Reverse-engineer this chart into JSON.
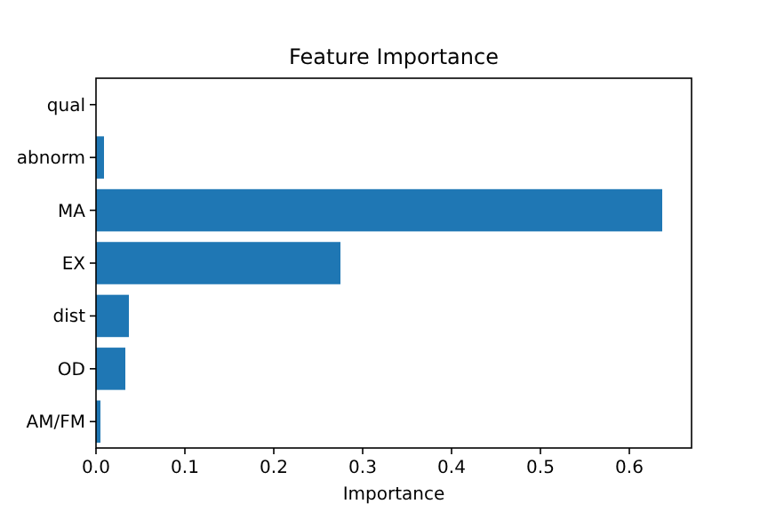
{
  "chart_data": {
    "type": "bar",
    "orientation": "horizontal",
    "title": "Feature Importance",
    "xlabel": "Importance",
    "categories": [
      "qual",
      "abnorm",
      "MA",
      "EX",
      "dist",
      "OD",
      "AM/FM"
    ],
    "values": [
      0,
      0.009,
      0.637,
      0.275,
      0.037,
      0.033,
      0.005
    ],
    "color": "#1f77b4",
    "xlim": [
      0,
      0.67
    ],
    "xticks": [
      {
        "value": 0,
        "label": "0.0"
      },
      0.1,
      0.2,
      0.3,
      0.4,
      0.5,
      0.6
    ],
    "grid": false
  }
}
